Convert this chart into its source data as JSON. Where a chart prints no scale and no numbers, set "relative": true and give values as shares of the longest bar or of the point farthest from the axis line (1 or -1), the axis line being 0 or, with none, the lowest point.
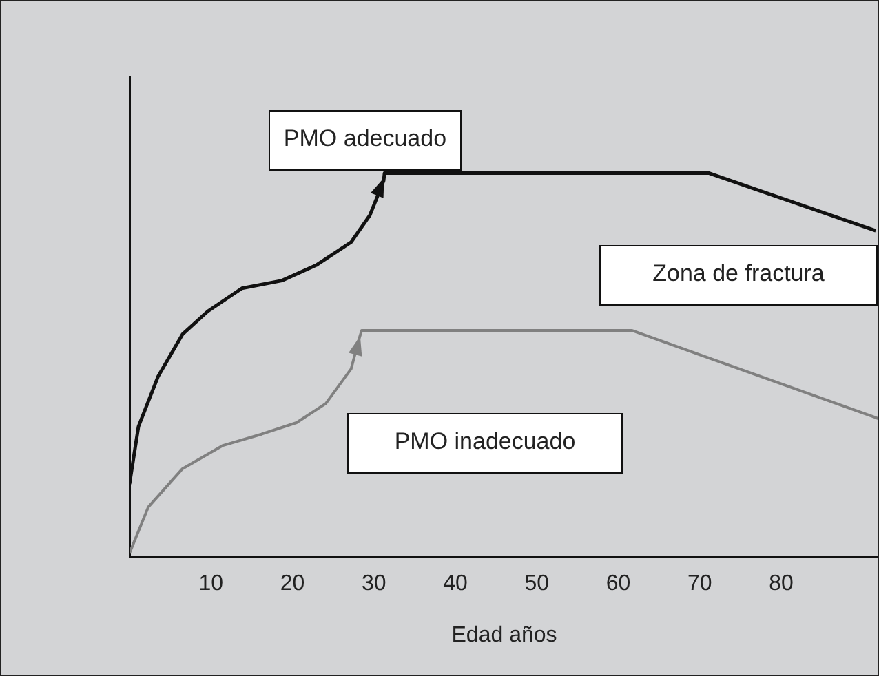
{
  "chart_data": {
    "type": "line",
    "xlabel": "Edad años",
    "relative": true,
    "xlim": [
      0,
      92
    ],
    "xticks": [
      10,
      20,
      30,
      40,
      50,
      60,
      70,
      80
    ],
    "tick_labels": "x",
    "grid": false,
    "legend": false,
    "marker": "none",
    "line_style": "solid",
    "annotations": [
      "Zona de fractura"
    ],
    "series": [
      {
        "name": "PMO adecuado",
        "color": "#111111",
        "x": [
          0,
          1.1,
          3.5,
          6.5,
          9.6,
          13.8,
          18.7,
          22.9,
          27.2,
          29.5,
          31.2,
          31.3,
          71.1,
          91.6
        ],
        "values": [
          0.19,
          0.34,
          0.47,
          0.58,
          0.64,
          0.7,
          0.72,
          0.76,
          0.82,
          0.89,
          0.98,
          1,
          1,
          0.85
        ]
      },
      {
        "name": "PMO inadecuado",
        "color": "#808080",
        "x": [
          0,
          2.3,
          6.5,
          11.4,
          16.2,
          20.5,
          24.1,
          27.2,
          28.2,
          28.5,
          61.7,
          92
        ],
        "values": [
          0.01,
          0.13,
          0.23,
          0.29,
          0.32,
          0.35,
          0.4,
          0.49,
          0.57,
          0.59,
          0.59,
          0.36
        ]
      }
    ]
  }
}
